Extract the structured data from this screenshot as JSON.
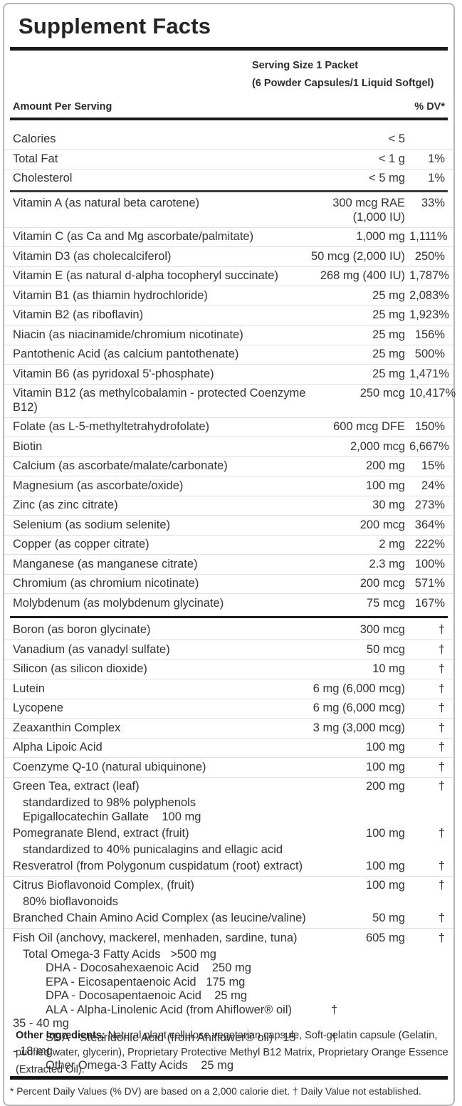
{
  "panel": {
    "title": "Supplement Facts",
    "serving_line1": "Serving Size 1 Packet",
    "serving_line2": "(6 Powder Capsules/1 Liquid Softgel)",
    "col_header_left": "Amount Per Serving",
    "col_header_right": "% DV*",
    "footnote": "* Percent Daily Values (% DV) are based on a 2,000 calorie diet. † Daily Value not established."
  },
  "rows": [
    {
      "type": "item",
      "name": "Calories",
      "amount": "< 5",
      "dv": ""
    },
    {
      "type": "item",
      "name": "Total Fat",
      "amount": "< 1 g",
      "dv": "1%"
    },
    {
      "type": "item",
      "name": "Cholesterol",
      "amount": "< 5 mg",
      "dv": "1%"
    },
    {
      "type": "divider",
      "weight": "medium"
    },
    {
      "type": "item",
      "name": "Vitamin A (as natural beta carotene)",
      "amount": "300 mcg RAE (1,000 IU)",
      "dv": "33%"
    },
    {
      "type": "item",
      "name": "Vitamin C (as Ca and Mg ascorbate/palmitate)",
      "amount": "1,000 mg",
      "dv": "1,111%"
    },
    {
      "type": "item",
      "name": "Vitamin D3 (as cholecalciferol)",
      "amount": "50 mcg (2,000 IU)",
      "dv": "250%"
    },
    {
      "type": "item",
      "name": "Vitamin E (as natural d-alpha tocopheryl succinate)",
      "amount": "268 mg (400 IU)",
      "dv": "1,787%"
    },
    {
      "type": "item",
      "name": "Vitamin B1 (as thiamin hydrochloride)",
      "amount": "25 mg",
      "dv": "2,083%"
    },
    {
      "type": "item",
      "name": "Vitamin B2 (as riboflavin)",
      "amount": "25 mg",
      "dv": "1,923%"
    },
    {
      "type": "item",
      "name": "Niacin (as niacinamide/chromium nicotinate)",
      "amount": "25 mg",
      "dv": "156%"
    },
    {
      "type": "item",
      "name": "Pantothenic Acid (as calcium pantothenate)",
      "amount": "25 mg",
      "dv": "500%"
    },
    {
      "type": "item",
      "name": "Vitamin B6 (as pyridoxal 5'-phosphate)",
      "amount": "25 mg",
      "dv": "1,471%"
    },
    {
      "type": "item",
      "name": "Vitamin B12 (as methylcobalamin - protected Coenzyme B12)",
      "amount": "250 mcg",
      "dv": "10,417%"
    },
    {
      "type": "item",
      "name": "Folate (as L-5-methyltetrahydrofolate)",
      "amount": "600 mcg DFE",
      "dv": "150%"
    },
    {
      "type": "item",
      "name": "Biotin",
      "amount": "2,000 mcg",
      "dv": "6,667%"
    },
    {
      "type": "item",
      "name": "Calcium (as ascorbate/malate/carbonate)",
      "amount": "200 mg",
      "dv": "15%"
    },
    {
      "type": "item",
      "name": "Magnesium (as ascorbate/oxide)",
      "amount": "100 mg",
      "dv": "24%"
    },
    {
      "type": "item",
      "name": "Zinc (as zinc citrate)",
      "amount": "30 mg",
      "dv": "273%"
    },
    {
      "type": "item",
      "name": "Selenium (as sodium selenite)",
      "amount": "200 mcg",
      "dv": "364%"
    },
    {
      "type": "item",
      "name": "Copper (as copper citrate)",
      "amount": "2 mg",
      "dv": "222%"
    },
    {
      "type": "item",
      "name": "Manganese (as manganese citrate)",
      "amount": "2.3 mg",
      "dv": "100%"
    },
    {
      "type": "item",
      "name": "Chromium (as chromium nicotinate)",
      "amount": "200 mcg",
      "dv": "571%"
    },
    {
      "type": "item",
      "name": "Molybdenum (as molybdenum glycinate)",
      "amount": "75 mcg",
      "dv": "167%"
    },
    {
      "type": "divider",
      "weight": "thick"
    },
    {
      "type": "item",
      "name": "Boron (as boron glycinate)",
      "amount": "300 mcg",
      "dv": "†"
    },
    {
      "type": "item",
      "name": "Vanadium (as vanadyl sulfate)",
      "amount": "50 mcg",
      "dv": "†"
    },
    {
      "type": "item",
      "name": "Silicon (as silicon dioxide)",
      "amount": "10 mg",
      "dv": "†"
    },
    {
      "type": "item",
      "name": "Lutein",
      "amount": "6 mg (6,000 mcg)",
      "dv": "†"
    },
    {
      "type": "item",
      "name": "Lycopene",
      "amount": "6 mg (6,000 mcg)",
      "dv": "†"
    },
    {
      "type": "item",
      "name": "Zeaxanthin Complex",
      "amount": "3 mg (3,000 mcg)",
      "dv": "†"
    },
    {
      "type": "item",
      "name": "Alpha Lipoic Acid",
      "amount": "100 mg",
      "dv": "†"
    },
    {
      "type": "item",
      "name": "Coenzyme Q-10 (natural ubiquinone)",
      "amount": "100 mg",
      "dv": "†"
    },
    {
      "type": "item",
      "name": "Green Tea, extract (leaf)",
      "amount": "200 mg",
      "dv": "†"
    },
    {
      "type": "sub",
      "text": "standardized to 98% polyphenols",
      "indent": 1
    },
    {
      "type": "sub",
      "text": "Epigallocatechin Gallate    100 mg",
      "indent": 1
    },
    {
      "type": "item",
      "name": "Pomegranate Blend, extract (fruit)",
      "amount": "100 mg",
      "dv": "†"
    },
    {
      "type": "sub",
      "text": "standardized to 40% punicalagins and ellagic acid",
      "indent": 1
    },
    {
      "type": "item",
      "name": "Resveratrol (from Polygonum cuspidatum (root) extract)",
      "amount": "100 mg",
      "dv": "†"
    },
    {
      "type": "item",
      "name": "Citrus Bioflavonoid Complex, (fruit)",
      "amount": "100 mg",
      "dv": "†"
    },
    {
      "type": "sub",
      "text": "80% bioflavonoids",
      "indent": 1
    },
    {
      "type": "item",
      "name": "Branched Chain Amino Acid Complex (as leucine/valine)",
      "amount": "50 mg",
      "dv": "†"
    },
    {
      "type": "item",
      "name": "Fish Oil (anchovy, mackerel, menhaden, sardine, tuna)",
      "amount": "605 mg",
      "dv": "†"
    },
    {
      "type": "sub",
      "text": "Total Omega-3 Fatty Acids   >500 mg",
      "indent": 1
    },
    {
      "type": "sub",
      "text": "DHA - Docosahexaenoic Acid    250 mg",
      "indent": 2
    },
    {
      "type": "sub",
      "text": "EPA - Eicosapentaenoic Acid   175 mg",
      "indent": 2
    },
    {
      "type": "sub",
      "text": "DPA - Docosapentaenoic Acid    25 mg",
      "indent": 2
    },
    {
      "type": "sub",
      "text": "ALA - Alpha-Linolenic Acid (from Ahiflower® oil)   35 - 40 mg",
      "indent": 2,
      "dv": "†",
      "hanging": true
    },
    {
      "type": "sub",
      "text": "SDA - Stearidonic Acid (from Ahiflower® oil)   15 - 18 mg",
      "indent": 2,
      "dv": "†",
      "hanging": true
    },
    {
      "type": "sub",
      "text": "Other Omega-3 Fatty Acids    25 mg",
      "indent": 2
    }
  ],
  "other_ingredients": {
    "label": "Other Ingredients:",
    "text": " Natural plant cellulose vegetarian capsule, Soft-gelatin capsule (Gelatin, purified water, glycerin), Proprietary Protective Methyl B12 Matrix, Proprietary Orange Essence (Extracted Oil)."
  }
}
